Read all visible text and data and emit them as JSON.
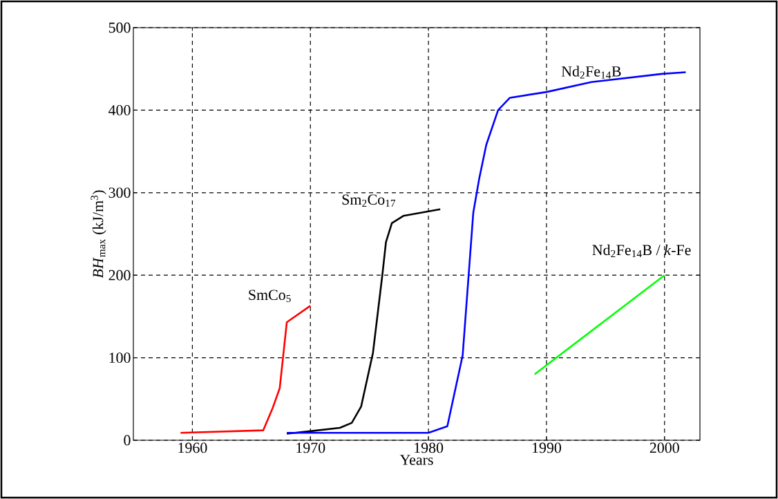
{
  "chart_data": {
    "type": "line",
    "xlabel": "Years",
    "ylabel": "*BH*$_{max}$ (kJ/m$^{3}$)",
    "xlim": [
      1955,
      2003
    ],
    "ylim": [
      0,
      500
    ],
    "xticks": [
      1960,
      1970,
      1980,
      1990,
      2000
    ],
    "yticks": [
      0,
      100,
      200,
      300,
      400,
      500
    ],
    "grid": true,
    "line_style": "solid",
    "marker": "none",
    "series": [
      {
        "name": "SmCo$_{5}$",
        "color": "#ff0000",
        "x": [
          1959,
          1966,
          1966.8,
          1967.4,
          1968,
          1970
        ],
        "values": [
          9,
          12,
          39,
          63,
          143,
          163
        ]
      },
      {
        "name": "Sm$_{2}$Co$_{17}$",
        "color": "#000000",
        "x": [
          1968,
          1970,
          1972.5,
          1973.5,
          1974.3,
          1975.3,
          1976.1,
          1976.4,
          1976.9,
          1977.9,
          1981
        ],
        "values": [
          8,
          11,
          15,
          21,
          41,
          106,
          201,
          240,
          263,
          272,
          280
        ]
      },
      {
        "name": "Nd$_{2}$Fe$_{14}$B",
        "color": "#0000ff",
        "x": [
          1968,
          1980,
          1981.6,
          1982.9,
          1983.8,
          1984.3,
          1984.9,
          1985.9,
          1986.9,
          1990,
          1993.8,
          1999.8,
          2001.8
        ],
        "values": [
          9,
          9,
          17,
          103,
          276,
          317,
          358,
          400,
          415,
          422,
          434,
          444,
          446
        ]
      },
      {
        "name": "Nd$_{2}$Fe$_{14}$B / *k*-Fe",
        "color": "#00ff00",
        "x": [
          1989,
          2000
        ],
        "values": [
          80,
          200
        ]
      }
    ]
  }
}
